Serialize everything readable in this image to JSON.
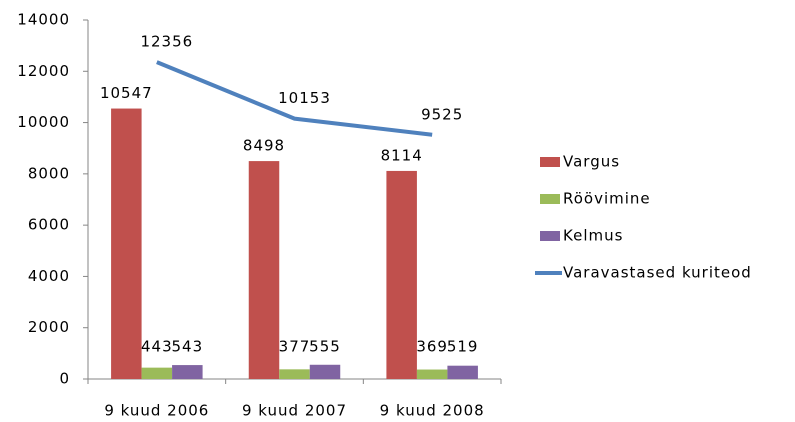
{
  "chart_data": {
    "type": "bar",
    "categories": [
      "9 kuud 2006",
      "9 kuud 2007",
      "9 kuud 2008"
    ],
    "series": [
      {
        "name": "Vargus",
        "color": "#c0504d",
        "values": [
          10547,
          8498,
          8114
        ]
      },
      {
        "name": "Röövimine",
        "color": "#9bbb59",
        "values": [
          443,
          377,
          369
        ]
      },
      {
        "name": "Kelmus",
        "color": "#8064a2",
        "values": [
          543,
          555,
          519
        ]
      },
      {
        "name": "Varavastased kuriteod",
        "color": "#4f81bd",
        "type": "line",
        "values": [
          12356,
          10153,
          9525
        ]
      }
    ],
    "ylim": [
      0,
      14000
    ],
    "yticks": [
      0,
      2000,
      4000,
      6000,
      8000,
      10000,
      12000,
      14000
    ],
    "legend": "right"
  }
}
